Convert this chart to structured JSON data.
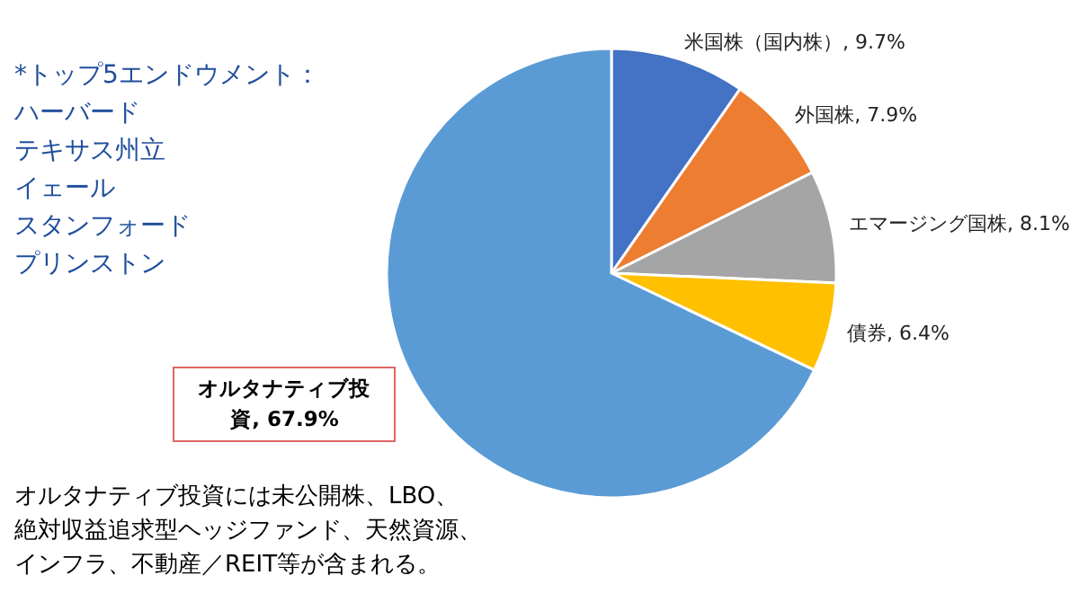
{
  "chart_data": {
    "type": "pie",
    "categories": [
      "米国株（国内株）",
      "外国株",
      "エマージング国株",
      "債券",
      "オルタナティブ投資"
    ],
    "values": [
      9.7,
      7.9,
      8.1,
      6.4,
      67.9
    ],
    "value_labels": [
      "9.7%",
      "7.9%",
      "8.1%",
      "6.4%",
      "67.9%"
    ],
    "colors": [
      "#4472c4",
      "#ed7d31",
      "#a5a5a5",
      "#ffc000",
      "#5b9bd5"
    ],
    "legend": false,
    "annotations": [
      "*トップ5エンドウメント：",
      "ハーバード",
      "テキサス州立",
      "イェール",
      "スタンフォード",
      "プリンストン",
      "オルタナティブ投資には未公開株、LBO、",
      "絶対収益追求型ヘッジファンド、天然資源、",
      "インフラ、不動産／REIT等が含まれる。"
    ]
  }
}
